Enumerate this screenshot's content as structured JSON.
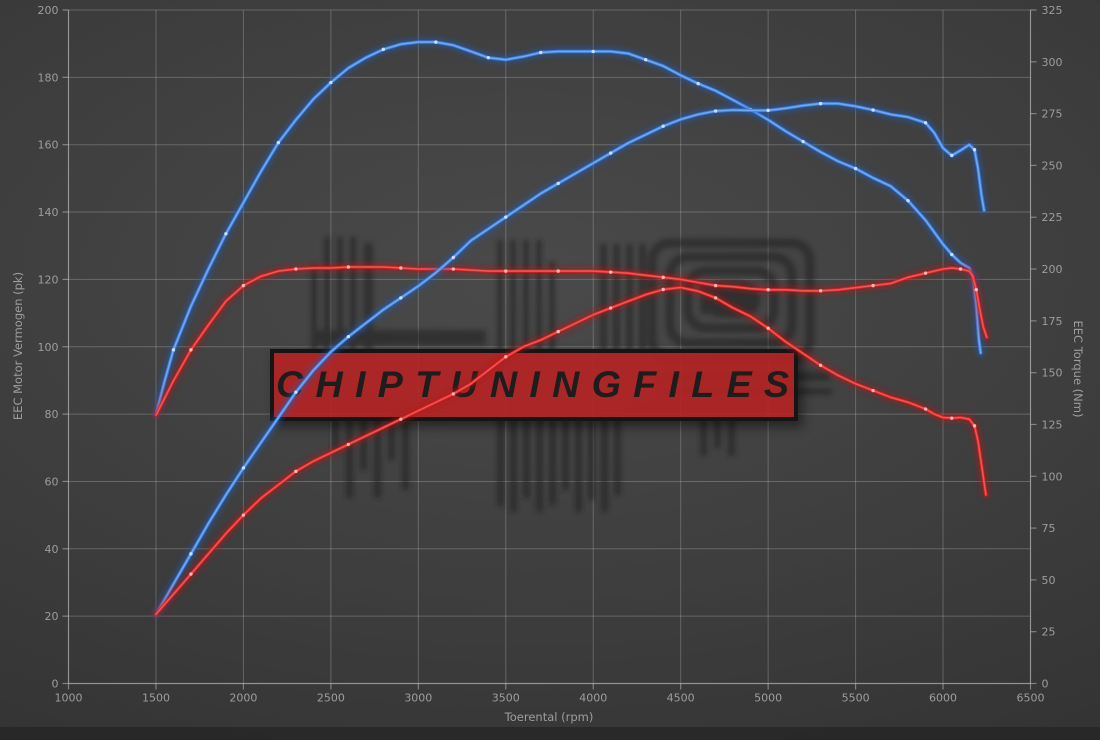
{
  "watermark": {
    "banner_text": "CHIPTUNINGFILES",
    "banner_fill": "#b62323",
    "banner_border": "#151515",
    "logo_color": "#1c1c1c"
  },
  "colors": {
    "background": "#3f3f3f",
    "grid": "rgba(190,190,190,0.32)",
    "spine": "rgba(190,190,190,0.55)",
    "tick_text": "#9d9d9d",
    "blue_glow": "#1f5ec4",
    "blue_mid": "#3f7fdb",
    "blue_core": "#6ea8f5",
    "blue_dot": "#cfe0ff",
    "red_glow": "#b51515",
    "red_mid": "#d42222",
    "red_core": "#f25454",
    "red_dot": "#ffbcbc"
  },
  "axes": {
    "x": {
      "label": "Toerental (rpm)",
      "min": 1000,
      "max": 6500,
      "ticks": [
        1000,
        1500,
        2000,
        2500,
        3000,
        3500,
        4000,
        4500,
        5000,
        5500,
        6000,
        6500
      ]
    },
    "y_left": {
      "label": "EEC Motor Vermogen (pk)",
      "min": 0,
      "max": 200,
      "ticks": [
        0,
        20,
        40,
        60,
        80,
        100,
        120,
        140,
        160,
        180,
        200
      ]
    },
    "y_right": {
      "label": "EEC Torque (Nm)",
      "min": 0,
      "max": 325,
      "ticks": [
        0,
        25,
        50,
        75,
        100,
        125,
        150,
        175,
        200,
        225,
        250,
        275,
        300,
        325
      ]
    }
  },
  "chart_data": {
    "type": "line",
    "title": "",
    "xlabel": "Toerental (rpm)",
    "ylabel_left": "EEC Motor Vermogen (pk)",
    "ylabel_right": "EEC Torque (Nm)",
    "grid": true,
    "legend": "none",
    "series": [
      {
        "id": "blue-torque-nm",
        "axis": "right",
        "color": "blue",
        "points": [
          [
            1500,
            130
          ],
          [
            1550,
            146
          ],
          [
            1600,
            161
          ],
          [
            1700,
            182
          ],
          [
            1800,
            200
          ],
          [
            1900,
            217
          ],
          [
            2000,
            232
          ],
          [
            2100,
            247
          ],
          [
            2200,
            261
          ],
          [
            2300,
            272
          ],
          [
            2400,
            282
          ],
          [
            2500,
            290
          ],
          [
            2600,
            297
          ],
          [
            2700,
            302
          ],
          [
            2800,
            306
          ],
          [
            2900,
            308.5
          ],
          [
            3000,
            309.5
          ],
          [
            3100,
            309.5
          ],
          [
            3200,
            308
          ],
          [
            3300,
            305
          ],
          [
            3400,
            302
          ],
          [
            3500,
            301
          ],
          [
            3600,
            302.5
          ],
          [
            3700,
            304.5
          ],
          [
            3800,
            305
          ],
          [
            3900,
            305
          ],
          [
            4000,
            305
          ],
          [
            4100,
            305
          ],
          [
            4200,
            304
          ],
          [
            4300,
            301
          ],
          [
            4400,
            298
          ],
          [
            4500,
            293.5
          ],
          [
            4600,
            289.5
          ],
          [
            4700,
            286
          ],
          [
            4800,
            281.5
          ],
          [
            4900,
            277
          ],
          [
            5000,
            272
          ],
          [
            5100,
            266.5
          ],
          [
            5200,
            261.5
          ],
          [
            5300,
            256.5
          ],
          [
            5400,
            252
          ],
          [
            5500,
            248.5
          ],
          [
            5600,
            244
          ],
          [
            5700,
            240
          ],
          [
            5800,
            233
          ],
          [
            5900,
            223.5
          ],
          [
            6000,
            212
          ],
          [
            6050,
            207
          ],
          [
            6100,
            203
          ],
          [
            6150,
            200.5
          ],
          [
            6170,
            196.5
          ],
          [
            6190,
            182
          ],
          [
            6205,
            166
          ],
          [
            6215,
            159.5
          ]
        ]
      },
      {
        "id": "red-torque-nm",
        "axis": "right",
        "color": "red",
        "points": [
          [
            1500,
            129.5
          ],
          [
            1600,
            146
          ],
          [
            1700,
            161
          ],
          [
            1800,
            173
          ],
          [
            1900,
            184.5
          ],
          [
            2000,
            192
          ],
          [
            2100,
            196.5
          ],
          [
            2200,
            199
          ],
          [
            2300,
            200
          ],
          [
            2400,
            200.5
          ],
          [
            2500,
            200.5
          ],
          [
            2600,
            201
          ],
          [
            2700,
            201
          ],
          [
            2800,
            201
          ],
          [
            2900,
            200.5
          ],
          [
            3000,
            200
          ],
          [
            3100,
            200
          ],
          [
            3200,
            200
          ],
          [
            3300,
            199.5
          ],
          [
            3400,
            199
          ],
          [
            3500,
            199
          ],
          [
            3600,
            199
          ],
          [
            3700,
            199
          ],
          [
            3800,
            199
          ],
          [
            3900,
            199
          ],
          [
            4000,
            199
          ],
          [
            4100,
            198.5
          ],
          [
            4200,
            198
          ],
          [
            4300,
            197
          ],
          [
            4400,
            196
          ],
          [
            4500,
            195
          ],
          [
            4600,
            193.5
          ],
          [
            4700,
            192
          ],
          [
            4800,
            191.5
          ],
          [
            4900,
            190.5
          ],
          [
            5000,
            190
          ],
          [
            5100,
            190
          ],
          [
            5200,
            189.5
          ],
          [
            5300,
            189.5
          ],
          [
            5400,
            190
          ],
          [
            5500,
            191
          ],
          [
            5600,
            192
          ],
          [
            5700,
            193
          ],
          [
            5800,
            196
          ],
          [
            5900,
            198
          ],
          [
            6000,
            200
          ],
          [
            6050,
            200.5
          ],
          [
            6100,
            200
          ],
          [
            6150,
            199
          ],
          [
            6170,
            196.5
          ],
          [
            6190,
            190
          ],
          [
            6210,
            180.5
          ],
          [
            6230,
            172
          ],
          [
            6250,
            167
          ]
        ]
      },
      {
        "id": "blue-power-pk",
        "axis": "left",
        "color": "blue",
        "points": [
          [
            1500,
            20.5
          ],
          [
            1600,
            29.5
          ],
          [
            1700,
            38.5
          ],
          [
            1800,
            47.5
          ],
          [
            1900,
            56
          ],
          [
            2000,
            64
          ],
          [
            2100,
            71.5
          ],
          [
            2200,
            79
          ],
          [
            2300,
            86.5
          ],
          [
            2400,
            93
          ],
          [
            2500,
            98.5
          ],
          [
            2600,
            103
          ],
          [
            2700,
            107
          ],
          [
            2800,
            111
          ],
          [
            2900,
            114.5
          ],
          [
            3000,
            118
          ],
          [
            3100,
            122
          ],
          [
            3200,
            126.5
          ],
          [
            3300,
            131.5
          ],
          [
            3400,
            135
          ],
          [
            3500,
            138.5
          ],
          [
            3600,
            142
          ],
          [
            3700,
            145.5
          ],
          [
            3800,
            148.5
          ],
          [
            3900,
            151.5
          ],
          [
            4000,
            154.5
          ],
          [
            4100,
            157.5
          ],
          [
            4200,
            160.5
          ],
          [
            4300,
            163
          ],
          [
            4400,
            165.5
          ],
          [
            4500,
            167.5
          ],
          [
            4600,
            169
          ],
          [
            4700,
            170
          ],
          [
            4800,
            170.3
          ],
          [
            4900,
            170.2
          ],
          [
            5000,
            170.2
          ],
          [
            5100,
            170.8
          ],
          [
            5200,
            171.6
          ],
          [
            5300,
            172.2
          ],
          [
            5400,
            172.2
          ],
          [
            5500,
            171.4
          ],
          [
            5600,
            170.3
          ],
          [
            5700,
            169
          ],
          [
            5800,
            168.2
          ],
          [
            5900,
            166.5
          ],
          [
            5950,
            163.5
          ],
          [
            6000,
            159
          ],
          [
            6050,
            156.8
          ],
          [
            6100,
            158.3
          ],
          [
            6150,
            160
          ],
          [
            6180,
            158.5
          ],
          [
            6200,
            153
          ],
          [
            6220,
            145
          ],
          [
            6235,
            140.5
          ]
        ]
      },
      {
        "id": "red-power-pk",
        "axis": "left",
        "color": "red",
        "points": [
          [
            1500,
            20.6
          ],
          [
            1600,
            26.5
          ],
          [
            1700,
            32.5
          ],
          [
            1800,
            38.5
          ],
          [
            1900,
            44.5
          ],
          [
            2000,
            50
          ],
          [
            2100,
            55
          ],
          [
            2200,
            59
          ],
          [
            2300,
            63
          ],
          [
            2400,
            66
          ],
          [
            2500,
            68.5
          ],
          [
            2600,
            71
          ],
          [
            2700,
            73.5
          ],
          [
            2800,
            76
          ],
          [
            2900,
            78.5
          ],
          [
            3000,
            81
          ],
          [
            3100,
            83.5
          ],
          [
            3200,
            86
          ],
          [
            3300,
            89
          ],
          [
            3400,
            93
          ],
          [
            3500,
            97
          ],
          [
            3600,
            100
          ],
          [
            3700,
            102
          ],
          [
            3800,
            104.5
          ],
          [
            3900,
            107
          ],
          [
            4000,
            109.5
          ],
          [
            4100,
            111.5
          ],
          [
            4200,
            113.5
          ],
          [
            4300,
            115.5
          ],
          [
            4400,
            117
          ],
          [
            4500,
            117.6
          ],
          [
            4600,
            116.5
          ],
          [
            4700,
            114.5
          ],
          [
            4800,
            111.5
          ],
          [
            4900,
            109
          ],
          [
            5000,
            105.5
          ],
          [
            5100,
            101.5
          ],
          [
            5200,
            98
          ],
          [
            5300,
            94.5
          ],
          [
            5400,
            91.5
          ],
          [
            5500,
            89
          ],
          [
            5600,
            87
          ],
          [
            5700,
            85
          ],
          [
            5800,
            83.5
          ],
          [
            5900,
            81.5
          ],
          [
            5950,
            80
          ],
          [
            6000,
            79
          ],
          [
            6050,
            78.8
          ],
          [
            6100,
            79
          ],
          [
            6150,
            78.5
          ],
          [
            6180,
            76.5
          ],
          [
            6200,
            72
          ],
          [
            6220,
            65
          ],
          [
            6245,
            56
          ]
        ]
      }
    ]
  }
}
